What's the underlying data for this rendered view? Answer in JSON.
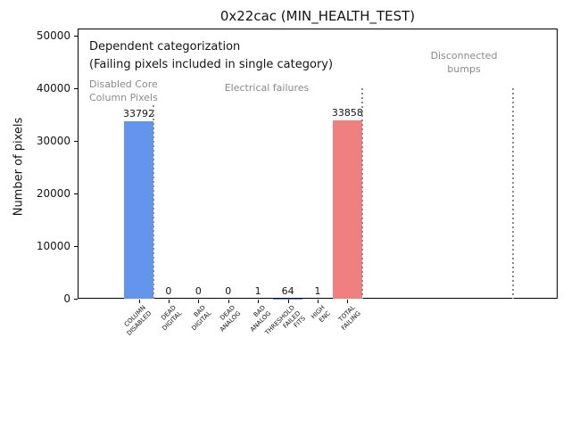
{
  "title": "0x22cac (MIN_HEALTH_TEST)",
  "ylabel": "Number of pixels",
  "notes": {
    "dependent": "Dependent categorization",
    "failing": "(Failing pixels included in single category)"
  },
  "colors": {
    "bar_blue": "#6495ed",
    "bar_red": "#f08080",
    "gray_text": "#8a8a8a",
    "separator": "#8a8a8a",
    "axis": "#000000"
  },
  "chart_data": {
    "type": "bar",
    "title": "0x22cac (MIN_HEALTH_TEST)",
    "xlabel": "",
    "ylabel": "Number of pixels",
    "categories": [
      "COLUMN\nDISABLED",
      "DEAD\nDIGITAL",
      "BAD\nDIGITAL",
      "DEAD\nANALOG",
      "BAD\nANALOG",
      "THRESHOLD\nFAILED\nFITS",
      "HIGH\nENC",
      "TOTAL\nFAILING"
    ],
    "values": [
      33792,
      0,
      0,
      0,
      1,
      64,
      1,
      33858
    ],
    "value_labels": [
      "33792",
      "0",
      "0",
      "0",
      "1",
      "64",
      "1",
      "33858"
    ],
    "bar_colors": [
      "#6495ed",
      "#6495ed",
      "#6495ed",
      "#6495ed",
      "#6495ed",
      "#6495ed",
      "#6495ed",
      "#f08080"
    ],
    "yticks": [
      0,
      10000,
      20000,
      30000,
      40000,
      50000
    ],
    "ylim": [
      0,
      51350
    ],
    "xlim": [
      -2.05,
      14.05
    ],
    "grid": false,
    "legend": "none",
    "separators": [
      {
        "x": 0.5,
        "ymax": 36800
      },
      {
        "x": 7.5,
        "ymax": 40000
      },
      {
        "x": 12.55,
        "ymax": 40000
      }
    ],
    "group_annotations": [
      {
        "lines": [
          "Disabled Core",
          "Column Pixels"
        ]
      },
      {
        "lines": [
          "Electrical failures"
        ]
      },
      {
        "lines": [
          "Disconnected",
          "bumps"
        ]
      }
    ]
  }
}
